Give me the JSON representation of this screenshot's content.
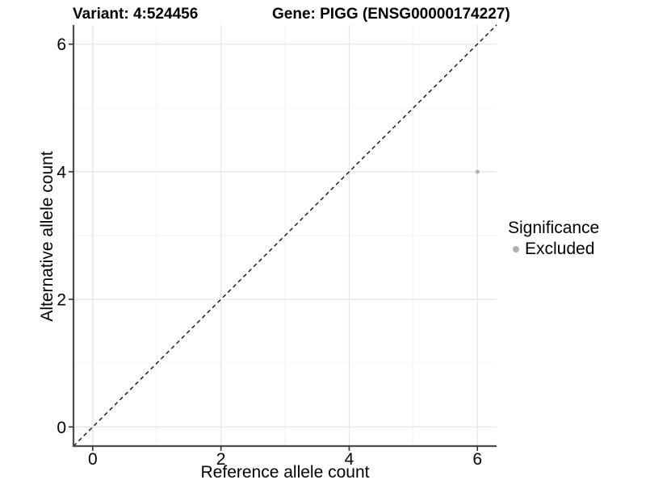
{
  "chart_data": {
    "type": "scatter",
    "title_left": "Variant: 4:524456",
    "title_right": "Gene: PIGG (ENSG00000174227)",
    "xlabel": "Reference allele count",
    "ylabel": "Alternative allele count",
    "xlim": [
      -0.3,
      6.3
    ],
    "ylim": [
      -0.3,
      6.3
    ],
    "xticks": [
      0,
      2,
      4,
      6
    ],
    "yticks": [
      0,
      2,
      4,
      6
    ],
    "minor_xticks": [
      1,
      3,
      5
    ],
    "minor_yticks": [
      1,
      3,
      5
    ],
    "grid": true,
    "identity_line": {
      "style": "dashed",
      "from": [
        -0.3,
        -0.3
      ],
      "to": [
        6.3,
        6.3
      ],
      "color": "#111111"
    },
    "series": [
      {
        "name": "Excluded",
        "color": "#b3b3b3",
        "points": [
          {
            "x": 6,
            "y": 4
          }
        ]
      }
    ],
    "legend": {
      "title": "Significance",
      "position": "right",
      "items": [
        {
          "label": "Excluded",
          "color": "#b0b0b0",
          "marker": "circle"
        }
      ]
    },
    "colors": {
      "background": "#ffffff",
      "grid_major": "#e4e4e4",
      "grid_minor": "#f1f1f1",
      "axis_line": "#4d4d4d",
      "tick_mark": "#333333",
      "text": "#000000"
    }
  }
}
